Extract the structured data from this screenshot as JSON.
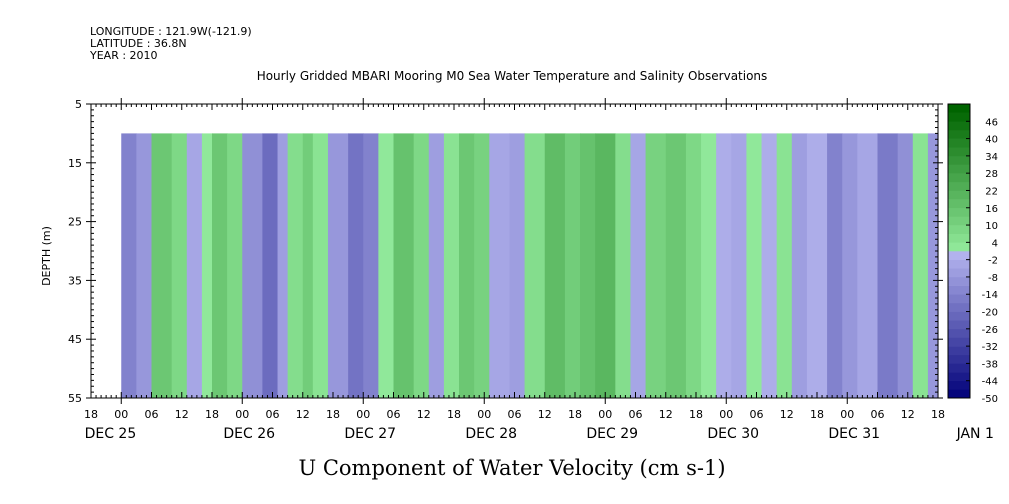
{
  "header": {
    "longitude": "LONGITUDE : 121.9W(-121.9)",
    "latitude": "LATITUDE : 36.8N",
    "year": "YEAR : 2010"
  },
  "chart_data": {
    "type": "heatmap",
    "title": "Hourly Gridded MBARI Mooring M0 Sea Water Temperature and Salinity Observations",
    "xlabel": "U Component of Water Velocity (cm s-1)",
    "ylabel": "DEPTH (m)",
    "y_ticks": [
      5,
      15,
      25,
      35,
      45,
      55
    ],
    "y_range": [
      5,
      55
    ],
    "data_depth_range": [
      10,
      55
    ],
    "x_range_hours": [
      -6,
      162
    ],
    "data_x_range_hours": [
      0,
      162
    ],
    "x_tick_hour_labels": [
      "18",
      "00",
      "06",
      "12",
      "18",
      "00",
      "06",
      "12",
      "18",
      "00",
      "06",
      "12",
      "18",
      "00",
      "06",
      "12",
      "18",
      "00",
      "06",
      "12",
      "18",
      "00",
      "06",
      "12",
      "18",
      "00",
      "06",
      "12",
      "18"
    ],
    "x_date_labels": [
      "DEC 25",
      "DEC 26",
      "DEC 27",
      "DEC 28",
      "DEC 29",
      "DEC 30",
      "DEC 31",
      "JAN  1"
    ],
    "colorbar": {
      "labels": [
        "46",
        "40",
        "34",
        "28",
        "22",
        "16",
        "10",
        "4",
        "-2",
        "-8",
        "-14",
        "-20",
        "-26",
        "-32",
        "-38",
        "-44",
        "-50"
      ],
      "range": [
        -50,
        52
      ]
    },
    "bands": [
      {
        "t": 0,
        "v": -14
      },
      {
        "t": 3,
        "v": -8
      },
      {
        "t": 6,
        "v": 14
      },
      {
        "t": 10,
        "v": 8
      },
      {
        "t": 13,
        "v": -4
      },
      {
        "t": 16,
        "v": 2
      },
      {
        "t": 18,
        "v": 14
      },
      {
        "t": 21,
        "v": 8
      },
      {
        "t": 24,
        "v": -10
      },
      {
        "t": 28,
        "v": -20
      },
      {
        "t": 31,
        "v": -6
      },
      {
        "t": 33,
        "v": 6
      },
      {
        "t": 36,
        "v": 12
      },
      {
        "t": 38,
        "v": 4
      },
      {
        "t": 41,
        "v": -8
      },
      {
        "t": 45,
        "v": -18
      },
      {
        "t": 48,
        "v": -14
      },
      {
        "t": 51,
        "v": 2
      },
      {
        "t": 54,
        "v": 16
      },
      {
        "t": 58,
        "v": 8
      },
      {
        "t": 61,
        "v": -6
      },
      {
        "t": 64,
        "v": 4
      },
      {
        "t": 67,
        "v": 14
      },
      {
        "t": 70,
        "v": 10
      },
      {
        "t": 73,
        "v": -4
      },
      {
        "t": 77,
        "v": -6
      },
      {
        "t": 80,
        "v": 6
      },
      {
        "t": 84,
        "v": 18
      },
      {
        "t": 88,
        "v": 12
      },
      {
        "t": 91,
        "v": 16
      },
      {
        "t": 94,
        "v": 20
      },
      {
        "t": 98,
        "v": 6
      },
      {
        "t": 101,
        "v": -4
      },
      {
        "t": 104,
        "v": 10
      },
      {
        "t": 108,
        "v": 14
      },
      {
        "t": 112,
        "v": 8
      },
      {
        "t": 115,
        "v": 2
      },
      {
        "t": 118,
        "v": -2
      },
      {
        "t": 121,
        "v": -4
      },
      {
        "t": 124,
        "v": 2
      },
      {
        "t": 127,
        "v": -2
      },
      {
        "t": 130,
        "v": 4
      },
      {
        "t": 133,
        "v": -6
      },
      {
        "t": 136,
        "v": -2
      },
      {
        "t": 140,
        "v": -14
      },
      {
        "t": 143,
        "v": -8
      },
      {
        "t": 146,
        "v": -4
      },
      {
        "t": 150,
        "v": -16
      },
      {
        "t": 154,
        "v": -10
      },
      {
        "t": 157,
        "v": 4
      },
      {
        "t": 160,
        "v": -8
      },
      {
        "t": 162,
        "v": 6
      }
    ]
  }
}
